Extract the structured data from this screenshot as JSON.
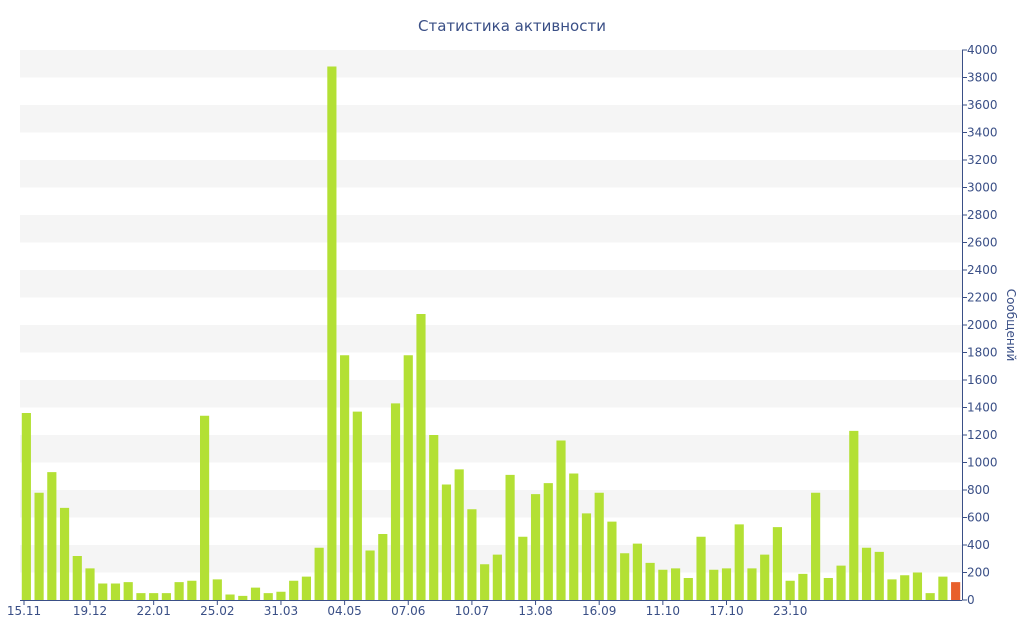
{
  "chart_data": {
    "type": "bar",
    "title": "Статистика активности",
    "ylabel": "Сообщений",
    "ylim": [
      0,
      4000
    ],
    "ytick_step": 200,
    "y_axis_position": "right",
    "grid": "horizontal alternating bands",
    "legend": "none",
    "colors": {
      "bar": "#b3e034",
      "bar_highlight": "#e8602c",
      "band": "#f5f5f5",
      "axis": "#3a4f86",
      "text": "#3a4f86"
    },
    "x_tick_labels": [
      {
        "label": "15.11",
        "index": 0
      },
      {
        "label": "19.12",
        "index": 5
      },
      {
        "label": "22.01",
        "index": 10
      },
      {
        "label": "25.02",
        "index": 15
      },
      {
        "label": "31.03",
        "index": 20
      },
      {
        "label": "04.05",
        "index": 25
      },
      {
        "label": "07.06",
        "index": 30
      },
      {
        "label": "10.07",
        "index": 35
      },
      {
        "label": "13.08",
        "index": 40
      },
      {
        "label": "16.09",
        "index": 45
      },
      {
        "label": "11.10",
        "index": 50
      },
      {
        "label": "17.10",
        "index": 55
      },
      {
        "label": "23.10",
        "index": 60
      }
    ],
    "values": [
      1360,
      780,
      930,
      670,
      320,
      230,
      120,
      120,
      130,
      50,
      50,
      50,
      130,
      140,
      1340,
      150,
      40,
      30,
      90,
      50,
      60,
      140,
      170,
      380,
      3880,
      1780,
      1370,
      360,
      480,
      1430,
      1780,
      2080,
      1200,
      840,
      950,
      660,
      260,
      330,
      910,
      460,
      770,
      850,
      1160,
      920,
      630,
      780,
      570,
      340,
      410,
      270,
      220,
      230,
      160,
      460,
      220,
      230,
      550,
      230,
      330,
      530,
      140,
      190,
      780,
      160,
      250,
      1230,
      380,
      350,
      150,
      180,
      200,
      50,
      170,
      130
    ],
    "highlight_index": 73,
    "highlight_value": 130
  }
}
